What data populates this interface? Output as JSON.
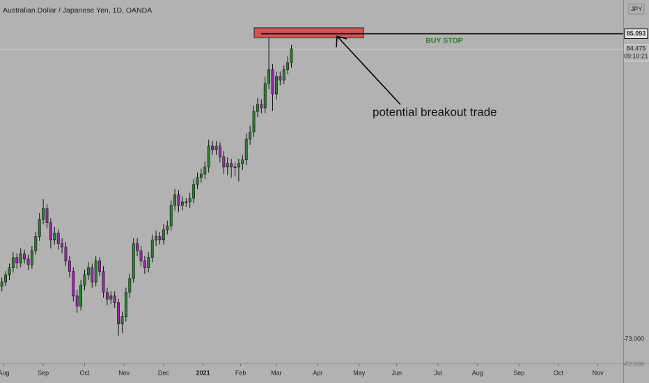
{
  "chart_data": {
    "type": "candlestick",
    "title": "Australian Dollar / Japanese Yen, 1D, OANDA",
    "currency": "JPY",
    "open": [
      75.1,
      75.27,
      75.55,
      75.83,
      76.24,
      76.02,
      76.38,
      76.18,
      75.96,
      76.51,
      77.07,
      77.75,
      78.17,
      77.62,
      76.93,
      77.2,
      76.79,
      76.65,
      76.1,
      75.69,
      74.72,
      74.31,
      75.14,
      75.55,
      75.83,
      75.27,
      76.1,
      75.69,
      74.86,
      74.59,
      74.72,
      74.45,
      73.62,
      73.9,
      74.86,
      75.41,
      76.79,
      76.51,
      76.1,
      75.83,
      76.24,
      76.93,
      77.07,
      76.93,
      77.34,
      77.48,
      78.3,
      78.72,
      78.3,
      78.44,
      78.44,
      78.58,
      79.13,
      79.41,
      79.54,
      79.82,
      80.65,
      80.51,
      80.65,
      80.23,
      79.82,
      79.96,
      79.82,
      79.82,
      79.96,
      80.1,
      80.92,
      81.2,
      82.02,
      82.3,
      82.16,
      83.13,
      83.68,
      82.71,
      83.4,
      83.26,
      83.68,
      83.95
    ],
    "high": [
      75.45,
      75.7,
      76.0,
      76.45,
      76.4,
      76.6,
      76.55,
      76.35,
      76.7,
      77.25,
      78.0,
      78.55,
      78.35,
      77.8,
      77.45,
      77.35,
      77.0,
      76.85,
      76.3,
      75.85,
      74.95,
      75.35,
      75.75,
      76.05,
      76.0,
      76.3,
      76.25,
      75.9,
      75.05,
      74.9,
      74.9,
      74.6,
      74.1,
      75.05,
      75.6,
      77.0,
      77.0,
      76.7,
      76.3,
      76.45,
      77.15,
      77.3,
      77.25,
      77.55,
      77.7,
      78.5,
      78.95,
      78.9,
      78.65,
      78.6,
      78.8,
      79.35,
      79.6,
      79.75,
      80.05,
      80.9,
      80.85,
      80.85,
      80.8,
      80.45,
      80.2,
      80.15,
      80.0,
      80.15,
      80.3,
      81.15,
      81.45,
      82.25,
      82.55,
      82.5,
      83.4,
      85.05,
      83.9,
      83.6,
      83.6,
      83.85,
      84.2,
      84.65
    ],
    "low": [
      74.9,
      75.1,
      75.35,
      75.65,
      75.8,
      75.85,
      76.0,
      75.75,
      75.8,
      76.35,
      76.9,
      77.55,
      77.4,
      76.6,
      76.75,
      76.55,
      76.4,
      75.9,
      75.45,
      74.5,
      74.05,
      74.15,
      74.95,
      75.35,
      75.05,
      75.1,
      75.5,
      74.65,
      74.35,
      74.4,
      74.25,
      73.15,
      73.25,
      73.7,
      74.65,
      75.25,
      76.3,
      75.9,
      75.6,
      75.65,
      76.05,
      76.7,
      76.75,
      76.75,
      77.15,
      77.3,
      78.1,
      78.05,
      78.1,
      78.25,
      78.2,
      78.4,
      78.95,
      79.2,
      79.35,
      79.6,
      80.3,
      80.3,
      80.0,
      79.55,
      79.5,
      79.4,
      79.45,
      79.25,
      79.7,
      79.9,
      80.7,
      81.0,
      81.8,
      81.95,
      81.95,
      82.9,
      82.05,
      82.5,
      83.05,
      83.1,
      83.5,
      83.75
    ],
    "close": [
      75.27,
      75.55,
      75.83,
      76.24,
      76.02,
      76.38,
      76.18,
      75.96,
      76.51,
      77.07,
      77.75,
      78.17,
      77.62,
      76.93,
      77.2,
      76.79,
      76.65,
      76.1,
      75.69,
      74.72,
      74.31,
      75.14,
      75.55,
      75.83,
      75.27,
      76.1,
      75.69,
      74.86,
      74.59,
      74.72,
      74.45,
      73.62,
      73.9,
      74.86,
      75.41,
      76.79,
      76.51,
      76.1,
      75.83,
      76.24,
      76.93,
      77.07,
      76.93,
      77.34,
      77.48,
      78.3,
      78.72,
      78.3,
      78.44,
      78.44,
      78.58,
      79.13,
      79.41,
      79.54,
      79.82,
      80.65,
      80.51,
      80.65,
      80.23,
      79.82,
      79.96,
      79.82,
      79.82,
      79.96,
      80.1,
      80.92,
      81.2,
      82.02,
      82.3,
      82.16,
      83.13,
      83.68,
      82.71,
      83.4,
      83.26,
      83.68,
      83.95,
      84.5
    ],
    "up_color": "#2e7d32",
    "down_color": "#9c27b0",
    "xlim": [
      -0.5,
      165.24
    ],
    "xticks": [
      {
        "value": 0.5,
        "label": "Aug"
      },
      {
        "value": 11,
        "label": "Sep"
      },
      {
        "value": 22,
        "label": "Oct"
      },
      {
        "value": 32.5,
        "label": "Nov"
      },
      {
        "value": 43,
        "label": "Dec"
      },
      {
        "value": 53.5,
        "label": "2021"
      },
      {
        "value": 63.5,
        "label": "Feb"
      },
      {
        "value": 73,
        "label": "Mar"
      },
      {
        "value": 84,
        "label": "Apr"
      },
      {
        "value": 95,
        "label": "May"
      },
      {
        "value": 105,
        "label": "Jun"
      },
      {
        "value": 116,
        "label": "Jul"
      },
      {
        "value": 126.5,
        "label": "Aug"
      },
      {
        "value": 137.5,
        "label": "Sep"
      },
      {
        "value": 148,
        "label": "Oct"
      },
      {
        "value": 158.5,
        "label": "Nov"
      }
    ],
    "ylim": [
      72.1,
      86.43
    ],
    "yticks": [
      {
        "value": 73,
        "label": "73.000"
      },
      {
        "value": 72,
        "label": "72.000"
      }
    ],
    "grid": false,
    "last_price": {
      "value": 84.475,
      "label": "84.475"
    },
    "countdown": "09:10:21",
    "zone": {
      "x": [
        67.1,
        96.2
      ],
      "y": [
        84.94,
        85.33
      ],
      "color": "#d35454"
    },
    "level": {
      "value": 85.093,
      "label": "85.093",
      "text": "BUY STOP"
    },
    "annotation": "potential breakout trade"
  }
}
